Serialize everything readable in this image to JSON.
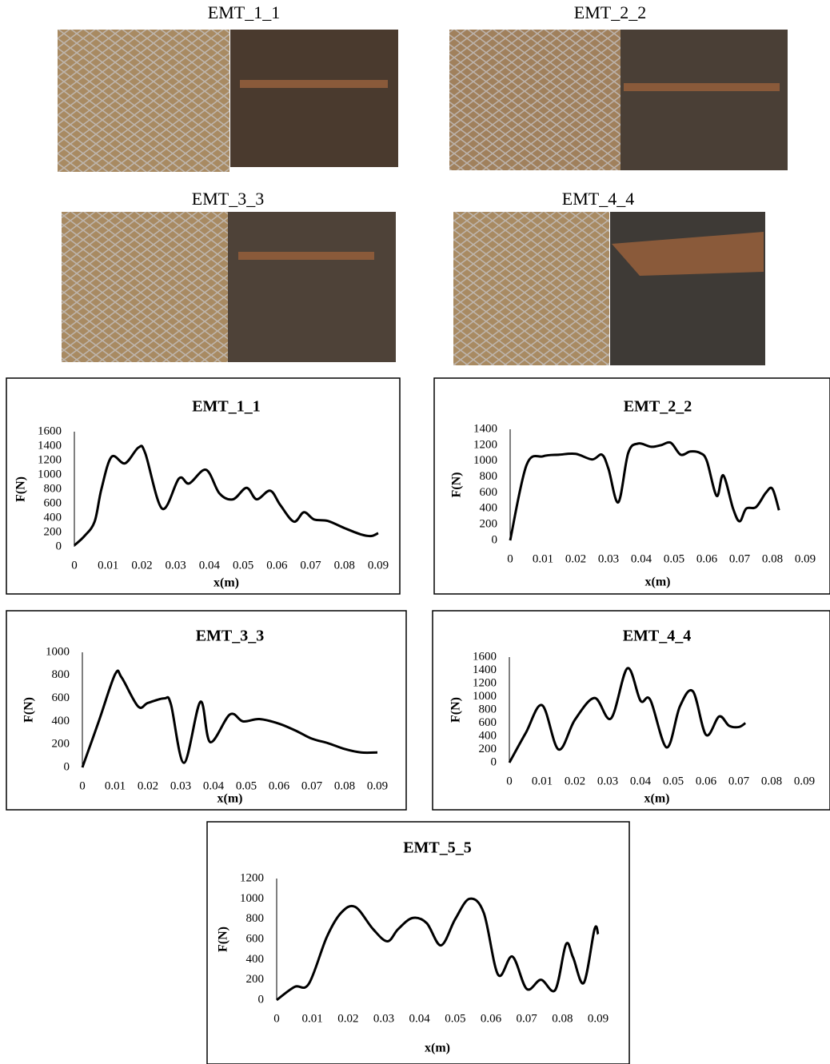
{
  "photos": [
    {
      "caption": "EMT_1_1"
    },
    {
      "caption": "EMT_2_2"
    },
    {
      "caption": "EMT_3_3"
    },
    {
      "caption": "EMT_4_4"
    }
  ],
  "chart_data": [
    {
      "type": "line",
      "title": "EMT_1_1",
      "x_label": "x(m)",
      "y_label": "F(N)",
      "xlim": [
        0,
        0.09
      ],
      "xticks": [
        0,
        0.01,
        0.02,
        0.03,
        0.04,
        0.05,
        0.06,
        0.07,
        0.08,
        0.09
      ],
      "ylim": [
        0,
        1600
      ],
      "yticks": [
        0,
        200,
        400,
        600,
        800,
        1000,
        1200,
        1400,
        1600
      ],
      "series": [
        {
          "color": "#000000",
          "x": [
            0,
            0.003,
            0.006,
            0.008,
            0.011,
            0.015,
            0.019,
            0.021,
            0.026,
            0.031,
            0.034,
            0.039,
            0.043,
            0.047,
            0.051,
            0.054,
            0.058,
            0.061,
            0.065,
            0.068,
            0.071,
            0.075,
            0.08,
            0.085,
            0.088,
            0.09
          ],
          "values": [
            20,
            150,
            350,
            800,
            1250,
            1160,
            1380,
            1300,
            530,
            950,
            880,
            1070,
            740,
            660,
            820,
            660,
            780,
            580,
            350,
            480,
            380,
            360,
            260,
            170,
            150,
            190
          ]
        }
      ]
    },
    {
      "type": "line",
      "title": "EMT_2_2",
      "x_label": "x(m)",
      "y_label": "F(N)",
      "xlim": [
        0,
        0.09
      ],
      "xticks": [
        0,
        0.01,
        0.02,
        0.03,
        0.04,
        0.05,
        0.06,
        0.07,
        0.08,
        0.09
      ],
      "ylim": [
        0,
        1400
      ],
      "yticks": [
        0,
        200,
        400,
        600,
        800,
        1000,
        1200,
        1400
      ],
      "series": [
        {
          "color": "#000000",
          "x": [
            0,
            0.005,
            0.01,
            0.015,
            0.02,
            0.025,
            0.028,
            0.03,
            0.033,
            0.036,
            0.039,
            0.043,
            0.046,
            0.049,
            0.052,
            0.055,
            0.058,
            0.06,
            0.063,
            0.065,
            0.068,
            0.07,
            0.072,
            0.075,
            0.078,
            0.08,
            0.082
          ],
          "values": [
            0,
            950,
            1060,
            1080,
            1090,
            1020,
            1080,
            900,
            480,
            1100,
            1220,
            1180,
            1200,
            1230,
            1080,
            1120,
            1100,
            1000,
            560,
            820,
            400,
            240,
            400,
            420,
            600,
            650,
            380
          ]
        }
      ]
    },
    {
      "type": "line",
      "title": "EMT_3_3",
      "x_label": "x(m)",
      "y_label": "F(N)",
      "xlim": [
        0,
        0.09
      ],
      "xticks": [
        0,
        0.01,
        0.02,
        0.03,
        0.04,
        0.05,
        0.06,
        0.07,
        0.08,
        0.09
      ],
      "ylim": [
        0,
        1000
      ],
      "yticks": [
        0,
        200,
        400,
        600,
        800,
        1000
      ],
      "series": [
        {
          "color": "#000000",
          "x": [
            0,
            0.005,
            0.01,
            0.012,
            0.017,
            0.02,
            0.025,
            0.027,
            0.031,
            0.036,
            0.039,
            0.045,
            0.049,
            0.054,
            0.06,
            0.065,
            0.07,
            0.075,
            0.08,
            0.085,
            0.09
          ],
          "values": [
            0,
            400,
            810,
            780,
            530,
            560,
            600,
            550,
            40,
            570,
            220,
            460,
            400,
            420,
            380,
            320,
            250,
            210,
            160,
            130,
            130
          ]
        }
      ]
    },
    {
      "type": "line",
      "title": "EMT_4_4",
      "x_label": "x(m)",
      "y_label": "F(N)",
      "xlim": [
        0,
        0.09
      ],
      "xticks": [
        0,
        0.01,
        0.02,
        0.03,
        0.04,
        0.05,
        0.06,
        0.07,
        0.08,
        0.09
      ],
      "ylim": [
        0,
        1600
      ],
      "yticks": [
        0,
        200,
        400,
        600,
        800,
        1000,
        1200,
        1400,
        1600
      ],
      "series": [
        {
          "color": "#000000",
          "x": [
            0,
            0.005,
            0.01,
            0.015,
            0.02,
            0.026,
            0.031,
            0.036,
            0.04,
            0.043,
            0.048,
            0.052,
            0.056,
            0.06,
            0.064,
            0.067,
            0.07,
            0.072
          ],
          "values": [
            0,
            450,
            870,
            200,
            650,
            980,
            670,
            1430,
            940,
            950,
            230,
            850,
            1080,
            420,
            700,
            560,
            540,
            600
          ]
        }
      ]
    },
    {
      "type": "line",
      "title": "EMT_5_5",
      "x_label": "x(m)",
      "y_label": "F(N)",
      "xlim": [
        0,
        0.09
      ],
      "xticks": [
        0,
        0.01,
        0.02,
        0.03,
        0.04,
        0.05,
        0.06,
        0.07,
        0.08,
        0.09
      ],
      "ylim": [
        0,
        1200
      ],
      "yticks": [
        0,
        200,
        400,
        600,
        800,
        1000,
        1200
      ],
      "series": [
        {
          "color": "#000000",
          "x": [
            0,
            0.005,
            0.009,
            0.014,
            0.018,
            0.022,
            0.027,
            0.031,
            0.034,
            0.038,
            0.042,
            0.046,
            0.05,
            0.054,
            0.058,
            0.062,
            0.066,
            0.07,
            0.074,
            0.078,
            0.081,
            0.083,
            0.086,
            0.089,
            0.09
          ],
          "values": [
            0,
            130,
            160,
            620,
            860,
            920,
            700,
            580,
            700,
            810,
            760,
            540,
            800,
            1000,
            860,
            250,
            430,
            110,
            200,
            100,
            550,
            420,
            170,
            700,
            650
          ]
        }
      ]
    }
  ]
}
